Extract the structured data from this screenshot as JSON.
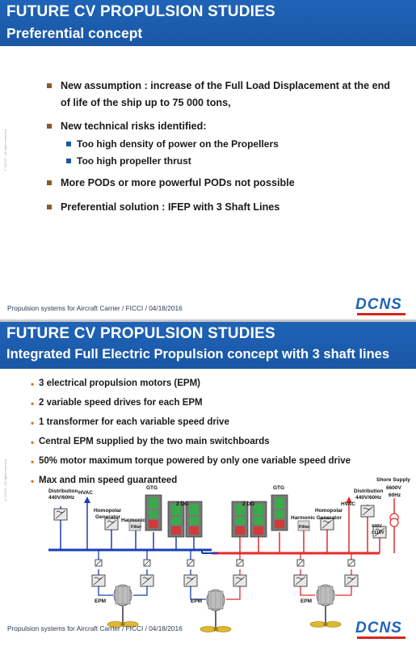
{
  "slide1": {
    "title": "FUTURE CV PROPULSION STUDIES",
    "subtitle": "Preferential concept",
    "bullets": {
      "b1_line1": "New assumption : increase of the Full Load Displacement at the end",
      "b1_line2": "of life of the ship up to 75 000 tons,",
      "b2": "New technical risks identified:",
      "b2_sub1": "Too high density of power on the Propellers",
      "b2_sub2": "Too high propeller thrust",
      "b3": "More PODs or more powerful PODs not possible",
      "b4": "Preferential solution : IFEP with 3 Shaft Lines"
    },
    "footer": "Propulsion systems for Aircraft Carrier / FICCI / 04/18/2016",
    "logo": "DCNS"
  },
  "slide2": {
    "title": "FUTURE CV PROPULSION STUDIES",
    "subtitle": "Integrated Full Electric Propulsion concept with 3 shaft lines",
    "bullets": [
      "3 electrical propulsion motors (EPM)",
      "2 variable speed drives for each EPM",
      "1 transformer for each variable speed drive",
      "Central EPM supplied by the two main switchboards",
      "50% motor maximum torque powered by only one variable speed drive",
      "Max and min speed guaranteed"
    ],
    "diagram": {
      "left_distribution": "Distribution",
      "left_distribution_v": "440V/60Hz",
      "left_hvac": "HVAC",
      "left_homopolar": "Homopolar",
      "left_generator": "Generator",
      "left_harmonic": "Harmonic",
      "left_filter": "Filter",
      "left_gtg": "GTG",
      "left_dg": "2 DG",
      "right_dg": "2 DG",
      "right_gtg": "GTG",
      "right_harmonic_gen": "Harmonic Generator",
      "right_homopolar": "Homopolar",
      "right_filter": "Filter",
      "right_hvac": "HVAC",
      "right_distribution": "Distribution",
      "right_distribution_v": "440V/60Hz",
      "shore_supply": "Shore Supply",
      "shore_v1": "6600V",
      "shore_v2": "60Hz",
      "transformer_v1": "440V",
      "transformer_v2": "/ 11kV",
      "epm_left": "EPM",
      "epm_center": "EPM",
      "epm_right": "EPM",
      "bus_left_color": "#1a3fb0",
      "bus_right_color": "#e52b2b"
    },
    "footer": "Propulsion systems for Aircraft Carrier / FICCI / 04/18/2016",
    "logo": "DCNS"
  }
}
